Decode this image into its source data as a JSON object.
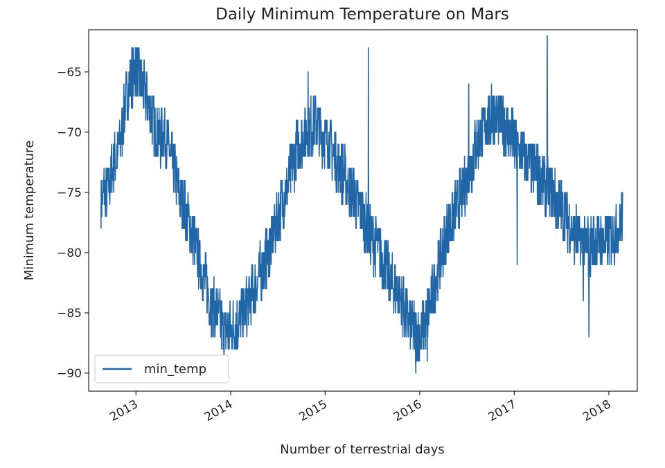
{
  "chart_data": {
    "type": "line",
    "title": "Daily Minimum Temperature on Mars",
    "xlabel": "Number of terrestrial days",
    "ylabel": "Minimum temperature",
    "xlim": [
      2012.5,
      2018.3
    ],
    "ylim": [
      -91.5,
      -61.5
    ],
    "grid": false,
    "legend_placement": "lower-left",
    "series_color": "#2166a6",
    "x_ticks": [
      {
        "value": 2013,
        "label": "2013"
      },
      {
        "value": 2014,
        "label": "2014"
      },
      {
        "value": 2015,
        "label": "2015"
      },
      {
        "value": 2016,
        "label": "2016"
      },
      {
        "value": 2017,
        "label": "2017"
      },
      {
        "value": 2018,
        "label": "2018"
      }
    ],
    "y_ticks": [
      {
        "value": -65,
        "label": "−65"
      },
      {
        "value": -70,
        "label": "−70"
      },
      {
        "value": -75,
        "label": "−75"
      },
      {
        "value": -80,
        "label": "−80"
      },
      {
        "value": -85,
        "label": "−85"
      },
      {
        "value": -90,
        "label": "−90"
      }
    ],
    "series": [
      {
        "name": "min_temp",
        "noise_amplitude": 1.5,
        "x": [
          2012.63,
          2012.66,
          2012.7,
          2012.75,
          2012.8,
          2012.85,
          2012.9,
          2012.95,
          2013.0,
          2013.05,
          2013.1,
          2013.15,
          2013.2,
          2013.25,
          2013.3,
          2013.35,
          2013.4,
          2013.45,
          2013.5,
          2013.55,
          2013.6,
          2013.65,
          2013.7,
          2013.75,
          2013.8,
          2013.85,
          2013.9,
          2013.95,
          2014.0,
          2014.05,
          2014.1,
          2014.15,
          2014.2,
          2014.25,
          2014.3,
          2014.35,
          2014.4,
          2014.45,
          2014.5,
          2014.55,
          2014.6,
          2014.65,
          2014.7,
          2014.75,
          2014.8,
          2014.85,
          2014.9,
          2014.95,
          2015.0,
          2015.05,
          2015.1,
          2015.15,
          2015.2,
          2015.25,
          2015.3,
          2015.35,
          2015.4,
          2015.45,
          2015.5,
          2015.55,
          2015.6,
          2015.65,
          2015.7,
          2015.75,
          2015.8,
          2015.85,
          2015.9,
          2015.95,
          2016.0,
          2016.05,
          2016.1,
          2016.15,
          2016.2,
          2016.25,
          2016.3,
          2016.35,
          2016.4,
          2016.45,
          2016.5,
          2016.55,
          2016.6,
          2016.65,
          2016.7,
          2016.75,
          2016.8,
          2016.85,
          2016.9,
          2016.95,
          2017.0,
          2017.05,
          2017.1,
          2017.15,
          2017.2,
          2017.25,
          2017.3,
          2017.35,
          2017.4,
          2017.45,
          2017.5,
          2017.55,
          2017.6,
          2017.65,
          2017.7,
          2017.75,
          2017.8,
          2017.85,
          2017.9,
          2017.95,
          2018.0,
          2018.05,
          2018.1,
          2018.15
        ],
        "y": [
          -76,
          -75,
          -75,
          -73,
          -72,
          -70,
          -67,
          -65.5,
          -64.5,
          -66,
          -67,
          -68,
          -69.5,
          -70.5,
          -70,
          -71.5,
          -73,
          -75,
          -76,
          -77.5,
          -78.5,
          -80,
          -81.5,
          -83,
          -84.5,
          -85,
          -86,
          -86.5,
          -86.5,
          -86,
          -85.5,
          -85,
          -84,
          -83,
          -82,
          -81,
          -80,
          -78.5,
          -77,
          -76,
          -74.5,
          -73,
          -71.5,
          -70.5,
          -70,
          -69.5,
          -69,
          -70,
          -70.5,
          -71,
          -72,
          -73,
          -73.5,
          -74.5,
          -75,
          -76,
          -77,
          -78,
          -79,
          -79.5,
          -80.5,
          -81.5,
          -82.5,
          -83,
          -84,
          -85,
          -86,
          -86.5,
          -87,
          -86,
          -84.5,
          -83,
          -81,
          -79.5,
          -78,
          -77,
          -76,
          -75,
          -74,
          -72.5,
          -71,
          -70,
          -69.5,
          -69,
          -68.5,
          -69,
          -69.5,
          -70,
          -71,
          -71.5,
          -72,
          -72.5,
          -73,
          -73.5,
          -74,
          -74.5,
          -75,
          -76,
          -76.5,
          -77,
          -78,
          -78.5,
          -79,
          -79.5,
          -79.5,
          -79,
          -79,
          -79,
          -79,
          -78.5,
          -78,
          -77
        ],
        "spikes": [
          {
            "x": 2013.02,
            "y": -63
          },
          {
            "x": 2014.82,
            "y": -65
          },
          {
            "x": 2015.46,
            "y": -63
          },
          {
            "x": 2015.96,
            "y": -90
          },
          {
            "x": 2016.08,
            "y": -89
          },
          {
            "x": 2016.52,
            "y": -66
          },
          {
            "x": 2016.76,
            "y": -66
          },
          {
            "x": 2017.35,
            "y": -62
          },
          {
            "x": 2017.03,
            "y": -81
          },
          {
            "x": 2017.79,
            "y": -87
          },
          {
            "x": 2017.73,
            "y": -84
          }
        ]
      }
    ]
  }
}
